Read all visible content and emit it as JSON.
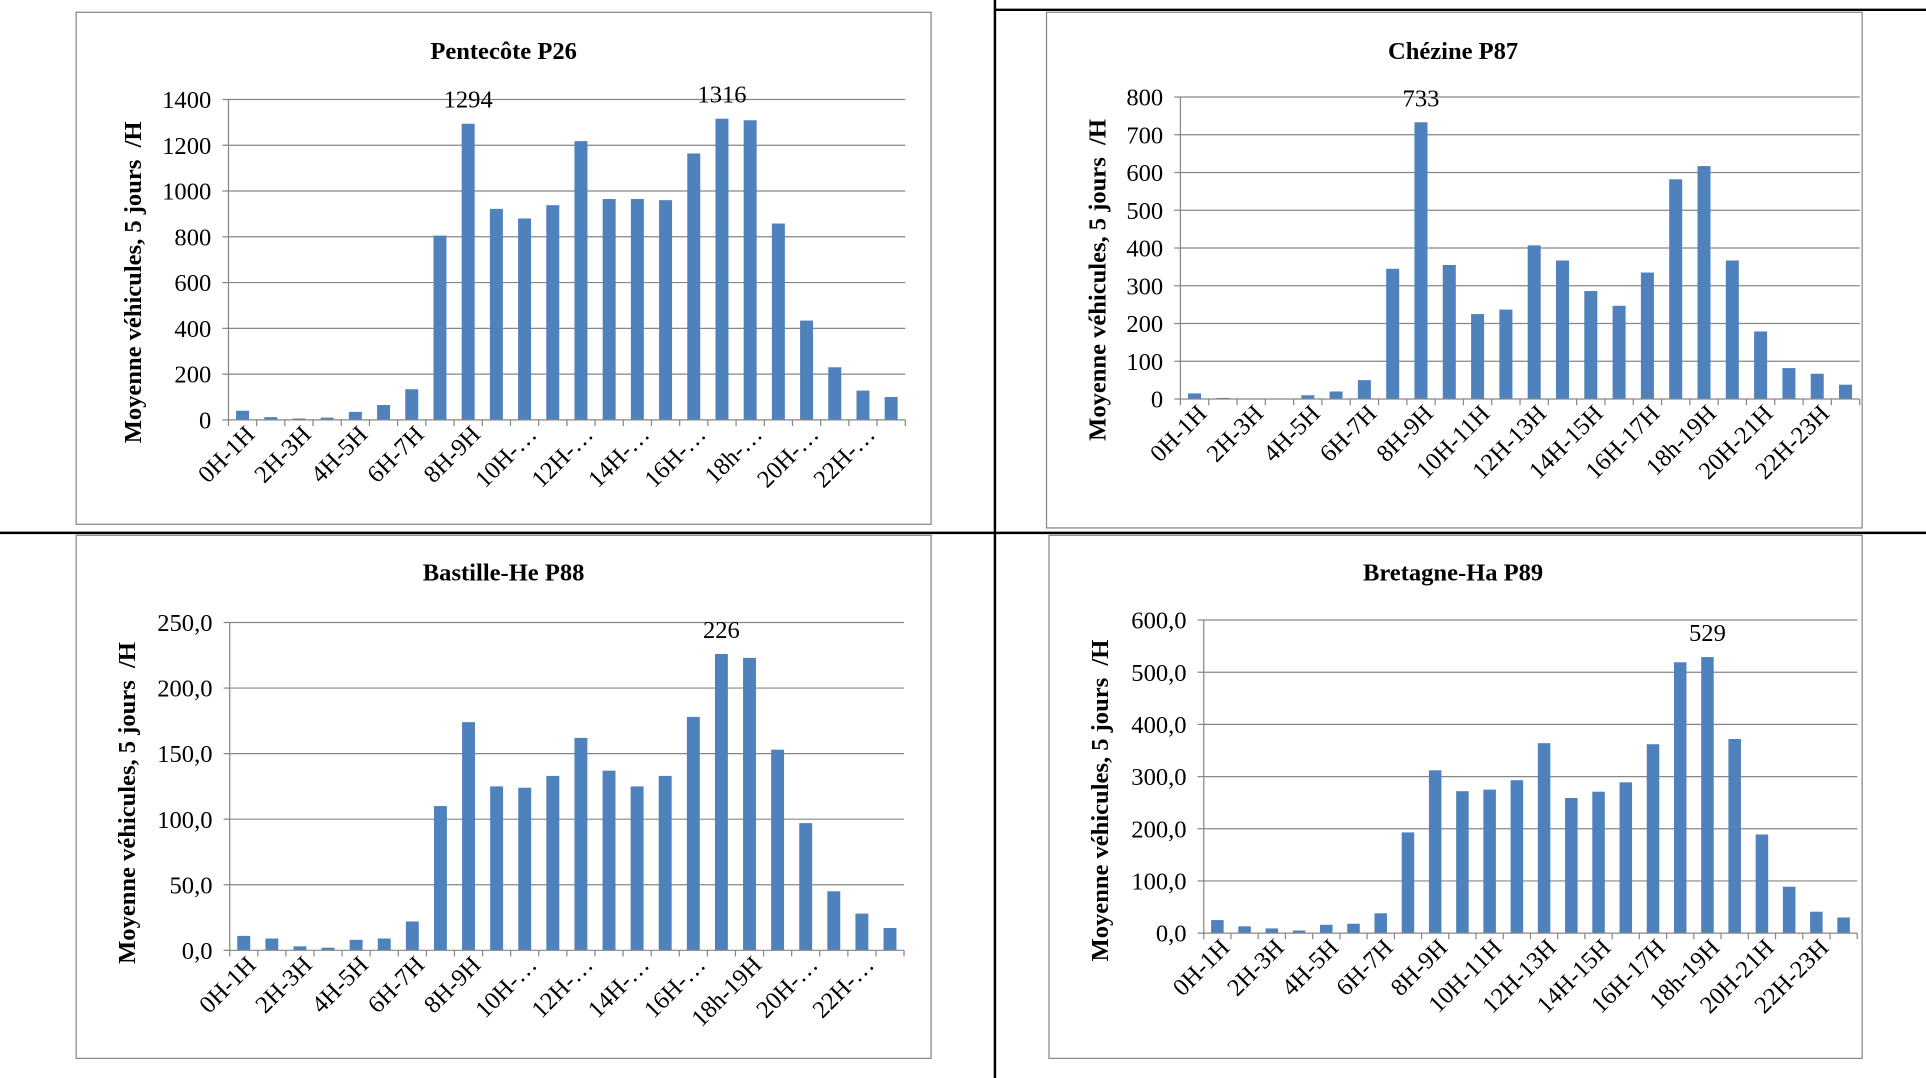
{
  "chart_data": [
    {
      "type": "bar",
      "title": "Pentecôte P26",
      "ylabel": "Moyenne véhicules, 5 jours  /H",
      "ylim": [
        0,
        1400
      ],
      "y_tick_labels": [
        "0",
        "200",
        "400",
        "600",
        "800",
        "1000",
        "1200",
        "1400"
      ],
      "categories": [
        "0H-1H",
        "",
        "2H-3H",
        "",
        "4H-5H",
        "",
        "6H-7H",
        "",
        "8H-9H",
        "",
        "10H-…",
        "",
        "12H-…",
        "",
        "14H-…",
        "",
        "16H-…",
        "",
        "18h-…",
        "",
        "20H-…",
        "",
        "22H-…",
        ""
      ],
      "values": [
        40,
        12,
        6,
        10,
        35,
        65,
        134,
        805,
        1294,
        922,
        880,
        938,
        1218,
        965,
        965,
        960,
        1164,
        1316,
        1309,
        858,
        434,
        230,
        128,
        100
      ],
      "data_labels": [
        {
          "index": 8,
          "text": "1294"
        },
        {
          "index": 17,
          "text": "1316"
        }
      ],
      "bar_color": "#4F81BD",
      "grid": true,
      "legend": "none"
    },
    {
      "type": "bar",
      "title": "Chézine P87",
      "ylabel": "Moyenne véhicules, 5 jours  /H",
      "ylim": [
        0,
        800
      ],
      "y_tick_labels": [
        "0",
        "100",
        "200",
        "300",
        "400",
        "500",
        "600",
        "700",
        "800"
      ],
      "categories": [
        "0H-1H",
        "",
        "2H-3H",
        "",
        "4H-5H",
        "",
        "6H-7H",
        "",
        "8H-9H",
        "",
        "10H-11H",
        "",
        "12H-13H",
        "",
        "14H-15H",
        "",
        "16H-17H",
        "",
        "18h-19H",
        "",
        "20H-21H",
        "",
        "22H-23H",
        ""
      ],
      "values": [
        15,
        3,
        1,
        0,
        10,
        20,
        50,
        345,
        733,
        355,
        225,
        237,
        407,
        367,
        286,
        247,
        335,
        582,
        617,
        367,
        179,
        82,
        67,
        38
      ],
      "data_labels": [
        {
          "index": 8,
          "text": "733"
        }
      ],
      "bar_color": "#4F81BD",
      "grid": true,
      "legend": "none"
    },
    {
      "type": "bar",
      "title": "Bastille-He P88",
      "ylabel": "Moyenne véhicules, 5 jours  /H",
      "ylim": [
        0,
        250
      ],
      "y_tick_labels": [
        "0,0",
        "50,0",
        "100,0",
        "150,0",
        "200,0",
        "250,0"
      ],
      "categories": [
        "0H-1H",
        "",
        "2H-3H",
        "",
        "4H-5H",
        "",
        "6H-7H",
        "",
        "8H-9H",
        "",
        "10H-…",
        "",
        "12H-…",
        "",
        "14H-…",
        "",
        "16H-…",
        "",
        "18h-19H",
        "",
        "20H-…",
        "",
        "22H-…",
        ""
      ],
      "values": [
        11,
        9,
        3,
        2,
        8,
        9,
        22,
        110,
        174,
        125,
        124,
        133,
        162,
        137,
        125,
        133,
        178,
        226,
        223,
        153,
        97,
        45,
        28,
        17
      ],
      "data_labels": [
        {
          "index": 17,
          "text": "226"
        }
      ],
      "bar_color": "#4F81BD",
      "grid": true,
      "legend": "none"
    },
    {
      "type": "bar",
      "title": "Bretagne-Ha P89",
      "ylabel": "Moyenne véhicules, 5 jours  /H",
      "ylim": [
        0,
        600
      ],
      "y_tick_labels": [
        "0,0",
        "100,0",
        "200,0",
        "300,0",
        "400,0",
        "500,0",
        "600,0"
      ],
      "categories": [
        "0H-1H",
        "",
        "2H-3H",
        "",
        "4H-5H",
        "",
        "6H-7H",
        "",
        "8H-9H",
        "",
        "10H-11H",
        "",
        "12H-13H",
        "",
        "14H-15H",
        "",
        "16H-17H",
        "",
        "18h-19H",
        "",
        "20H-21H",
        "",
        "22H-23H",
        ""
      ],
      "values": [
        25,
        13,
        9,
        5,
        16,
        18,
        38,
        193,
        312,
        272,
        275,
        293,
        364,
        259,
        271,
        289,
        362,
        519,
        529,
        372,
        189,
        89,
        41,
        30
      ],
      "data_labels": [
        {
          "index": 18,
          "text": "529"
        }
      ],
      "bar_color": "#4F81BD",
      "grid": true,
      "legend": "none"
    }
  ]
}
